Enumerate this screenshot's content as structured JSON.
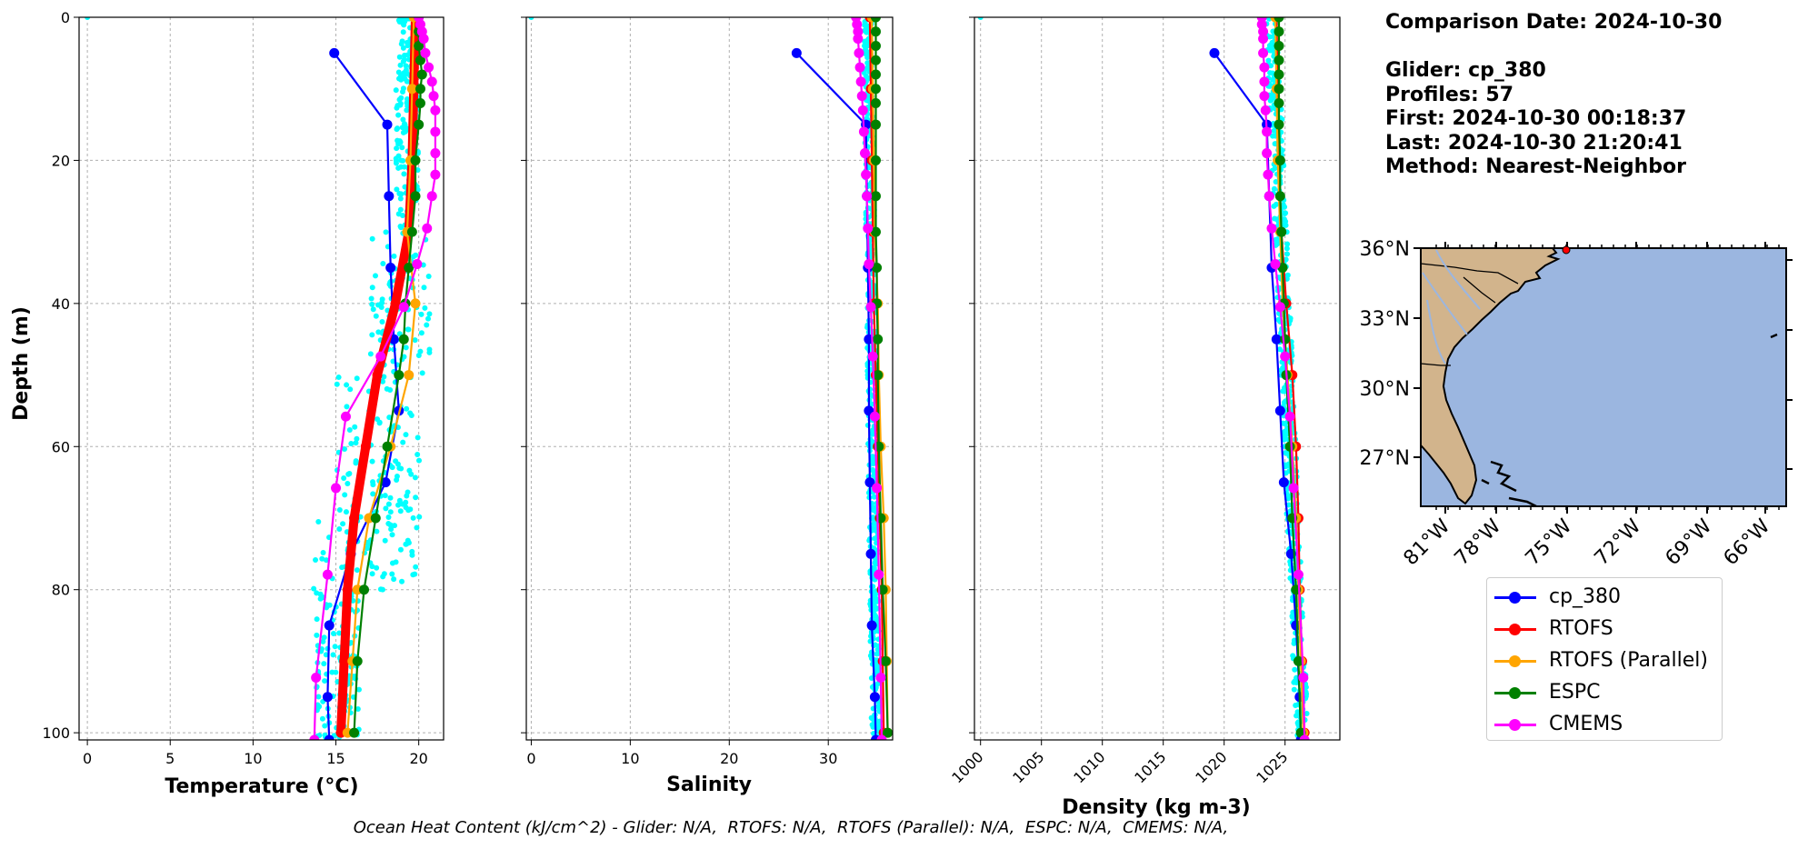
{
  "chart_data": [
    {
      "type": "line",
      "xlabel": "Temperature (°C)",
      "ylabel": "Depth (m)",
      "xlim": [
        -0.5,
        21.5
      ],
      "ylim": [
        101,
        0
      ],
      "x_ticks": [
        0,
        5,
        10,
        15,
        20
      ],
      "y_ticks": [
        0,
        20,
        40,
        60,
        80,
        100
      ],
      "series": [
        {
          "name": "cp_380",
          "color": "#0000ff",
          "depth": [
            5,
            15,
            25,
            35,
            45,
            55,
            65,
            75,
            85,
            95,
            101
          ],
          "values": [
            14.9,
            18.1,
            18.2,
            18.3,
            18.5,
            18.8,
            18.0,
            15.9,
            14.6,
            14.5,
            14.6
          ]
        },
        {
          "name": "RTOFS",
          "color": "#ff0000",
          "depth": [
            0,
            10,
            20,
            30,
            40,
            50,
            60,
            70,
            80,
            90,
            100
          ],
          "values": [
            19.8,
            19.7,
            19.6,
            19.4,
            18.6,
            17.5,
            16.8,
            16.1,
            15.7,
            15.5,
            15.3
          ]
        },
        {
          "name": "RTOFS (Parallel)",
          "color": "#ffa500",
          "depth": [
            0,
            10,
            20,
            30,
            40,
            50,
            60,
            70,
            80,
            90,
            100
          ],
          "values": [
            19.7,
            19.6,
            19.5,
            19.3,
            19.8,
            19.4,
            18.3,
            17.0,
            16.3,
            16.0,
            15.7
          ]
        },
        {
          "name": "ESPC",
          "color": "#008000",
          "depth": [
            0,
            2,
            4,
            6,
            8,
            10,
            12,
            15,
            20,
            25,
            30,
            35,
            40,
            45,
            50,
            60,
            70,
            80,
            90,
            100
          ],
          "values": [
            20.0,
            20.0,
            20.0,
            20.1,
            20.2,
            20.1,
            20.1,
            20.0,
            19.8,
            19.8,
            19.6,
            19.4,
            19.2,
            19.1,
            18.8,
            18.1,
            17.4,
            16.7,
            16.3,
            16.1
          ]
        },
        {
          "name": "CMEMS",
          "color": "#ff00ff",
          "depth": [
            0,
            1,
            2,
            3,
            5,
            7,
            9,
            11,
            13,
            16,
            19,
            22,
            25,
            29.5,
            34.5,
            40.5,
            47.4,
            55.8,
            65.8,
            77.9,
            92.3,
            101
          ],
          "values": [
            20.0,
            20.1,
            20.2,
            20.3,
            20.4,
            20.6,
            20.8,
            20.9,
            21.0,
            21.0,
            21.0,
            21.0,
            20.8,
            20.5,
            19.9,
            19.1,
            17.7,
            15.6,
            15.0,
            14.5,
            13.8,
            13.7
          ]
        }
      ]
    },
    {
      "type": "line",
      "xlabel": "Salinity",
      "xlim": [
        -0.5,
        36.5
      ],
      "ylim": [
        101,
        0
      ],
      "x_ticks": [
        0,
        10,
        20,
        30
      ],
      "series": [
        {
          "name": "cp_380",
          "color": "#0000ff",
          "depth": [
            5,
            15,
            25,
            35,
            45,
            55,
            65,
            75,
            85,
            95,
            101
          ],
          "values": [
            26.8,
            33.8,
            33.9,
            34.0,
            34.1,
            34.1,
            34.2,
            34.3,
            34.4,
            34.7,
            34.8
          ]
        },
        {
          "name": "RTOFS",
          "color": "#ff0000",
          "depth": [
            0,
            10,
            20,
            30,
            40,
            50,
            60,
            70,
            80,
            90,
            100
          ],
          "values": [
            34.2,
            34.3,
            34.4,
            34.5,
            34.6,
            34.8,
            35.0,
            35.2,
            35.4,
            35.5,
            35.6
          ]
        },
        {
          "name": "RTOFS (Parallel)",
          "color": "#ffa500",
          "depth": [
            0,
            10,
            20,
            30,
            40,
            50,
            60,
            70,
            80,
            90,
            100
          ],
          "values": [
            34.4,
            34.5,
            34.6,
            34.7,
            35.0,
            35.1,
            35.3,
            35.6,
            35.8,
            35.9,
            36.0
          ]
        },
        {
          "name": "ESPC",
          "color": "#008000",
          "depth": [
            0,
            2,
            4,
            6,
            8,
            10,
            12,
            15,
            20,
            25,
            30,
            35,
            40,
            45,
            50,
            60,
            70,
            80,
            90,
            100
          ],
          "values": [
            34.8,
            34.8,
            34.8,
            34.8,
            34.8,
            34.8,
            34.8,
            34.8,
            34.8,
            34.8,
            34.8,
            34.9,
            34.9,
            35.0,
            35.0,
            35.1,
            35.3,
            35.5,
            35.8,
            36.0
          ]
        },
        {
          "name": "CMEMS",
          "color": "#ff00ff",
          "depth": [
            0,
            1,
            2,
            3,
            5,
            7,
            9,
            11,
            13,
            16,
            19,
            22,
            25,
            29.5,
            34.5,
            40.5,
            47.4,
            55.8,
            65.8,
            77.9,
            92.3,
            101
          ],
          "values": [
            32.8,
            32.9,
            33.0,
            33.0,
            33.1,
            33.2,
            33.3,
            33.4,
            33.5,
            33.6,
            33.7,
            33.8,
            33.9,
            34.0,
            34.1,
            34.3,
            34.5,
            34.7,
            34.9,
            35.1,
            35.3,
            35.4
          ]
        }
      ]
    },
    {
      "type": "line",
      "xlabel": "Density (kg m-3)",
      "xlim": [
        999.5,
        1029.5
      ],
      "ylim": [
        101,
        0
      ],
      "x_ticks": [
        1000,
        1005,
        1010,
        1015,
        1020,
        1025
      ],
      "series": [
        {
          "name": "cp_380",
          "color": "#0000ff",
          "depth": [
            5,
            15,
            25,
            35,
            45,
            55,
            65,
            75,
            85,
            95,
            101
          ],
          "values": [
            1019.2,
            1023.5,
            1023.7,
            1023.9,
            1024.3,
            1024.6,
            1024.9,
            1025.5,
            1025.9,
            1026.2,
            1026.3
          ]
        },
        {
          "name": "RTOFS",
          "color": "#ff0000",
          "depth": [
            0,
            10,
            20,
            30,
            40,
            50,
            60,
            70,
            80,
            90,
            100
          ],
          "values": [
            1024.3,
            1024.4,
            1024.5,
            1024.7,
            1025.1,
            1025.6,
            1025.9,
            1026.1,
            1026.2,
            1026.4,
            1026.6
          ]
        },
        {
          "name": "RTOFS (Parallel)",
          "color": "#ffa500",
          "depth": [
            0,
            10,
            20,
            30,
            40,
            50,
            60,
            70,
            80,
            90,
            100
          ],
          "values": [
            1024.2,
            1024.3,
            1024.4,
            1024.6,
            1024.8,
            1025.2,
            1025.6,
            1025.9,
            1026.1,
            1026.3,
            1026.5
          ]
        },
        {
          "name": "ESPC",
          "color": "#008000",
          "depth": [
            0,
            2,
            4,
            6,
            8,
            10,
            12,
            15,
            20,
            25,
            30,
            35,
            40,
            45,
            50,
            60,
            70,
            80,
            90,
            100
          ],
          "values": [
            1024.5,
            1024.5,
            1024.5,
            1024.5,
            1024.5,
            1024.5,
            1024.5,
            1024.5,
            1024.6,
            1024.6,
            1024.7,
            1024.8,
            1024.9,
            1025.0,
            1025.1,
            1025.4,
            1025.6,
            1025.9,
            1026.1,
            1026.3
          ]
        },
        {
          "name": "CMEMS",
          "color": "#ff00ff",
          "depth": [
            0,
            1,
            2,
            3,
            5,
            7,
            9,
            11,
            13,
            16,
            19,
            22,
            25,
            29.5,
            34.5,
            40.5,
            47.4,
            55.8,
            65.8,
            77.9,
            92.3,
            101
          ],
          "values": [
            1023.1,
            1023.1,
            1023.2,
            1023.2,
            1023.2,
            1023.3,
            1023.3,
            1023.3,
            1023.4,
            1023.5,
            1023.5,
            1023.6,
            1023.7,
            1023.9,
            1024.2,
            1024.6,
            1025.0,
            1025.4,
            1025.7,
            1026.1,
            1026.5,
            1026.6
          ]
        }
      ]
    }
  ],
  "info": {
    "comparison_date": "Comparison Date: 2024-10-30",
    "glider": "Glider: cp_380",
    "profiles": "Profiles: 57",
    "first": "First: 2024-10-30 00:18:37",
    "last": "Last: 2024-10-30 21:20:41",
    "method": "Method: Nearest-Neighbor"
  },
  "map": {
    "lat_ticks": [
      "36°N",
      "33°N",
      "30°N",
      "27°N"
    ],
    "lon_ticks": [
      "81°W",
      "78°W",
      "75°W",
      "72°W",
      "69°W",
      "66°W"
    ],
    "glider_position": {
      "lon": -75.0,
      "lat": 35.9
    }
  },
  "legend": [
    {
      "label": "cp_380",
      "color": "#0000ff"
    },
    {
      "label": "RTOFS",
      "color": "#ff0000"
    },
    {
      "label": "RTOFS (Parallel)",
      "color": "#ffa500"
    },
    {
      "label": "ESPC",
      "color": "#008000"
    },
    {
      "label": "CMEMS",
      "color": "#ff00ff"
    }
  ],
  "colors": {
    "glider_scatter": "#00ffff",
    "ocean": "#9bb6e0",
    "land": "#d2b48c"
  },
  "footer": "Ocean Heat Content (kJ/cm^2) - Glider: N/A,  RTOFS: N/A,  RTOFS (Parallel): N/A,  ESPC: N/A,  CMEMS: N/A,"
}
